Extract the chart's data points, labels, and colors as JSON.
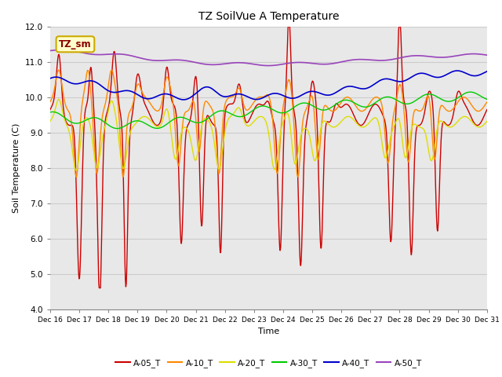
{
  "title": "TZ SoilVue A Temperature",
  "xlabel": "Time",
  "ylabel": "Soil Temperature (C)",
  "ylim": [
    4.0,
    12.0
  ],
  "yticks": [
    4.0,
    5.0,
    6.0,
    7.0,
    8.0,
    9.0,
    10.0,
    11.0,
    12.0
  ],
  "xtick_labels": [
    "Dec 16",
    "Dec 17",
    "Dec 18",
    "Dec 19",
    "Dec 20",
    "Dec 21",
    "Dec 22",
    "Dec 23",
    "Dec 24",
    "Dec 25",
    "Dec 26",
    "Dec 27",
    "Dec 28",
    "Dec 29",
    "Dec 30",
    "Dec 31"
  ],
  "series_colors": {
    "A-05_T": "#cc0000",
    "A-10_T": "#ff8800",
    "A-20_T": "#dddd00",
    "A-30_T": "#00cc00",
    "A-40_T": "#0000cc",
    "A-50_T": "#9944bb"
  },
  "bg_color": "#e8e8e8",
  "annotation_text": "TZ_sm",
  "annotation_bg": "#ffffcc",
  "annotation_border": "#ccaa00",
  "n_points": 1000
}
